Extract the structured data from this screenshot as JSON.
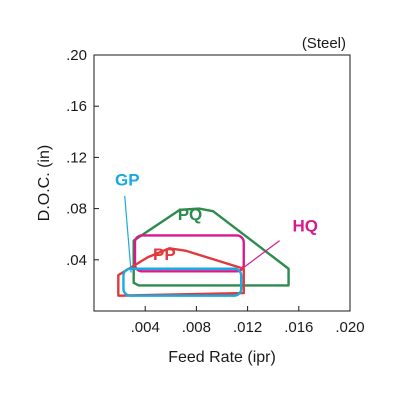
{
  "chart_data": {
    "type": "area",
    "title": "",
    "note": "(Steel)",
    "xlabel": "Feed Rate (ipr)",
    "ylabel": "D.O.C. (in)",
    "xlim": [
      0,
      0.02
    ],
    "ylim": [
      0,
      0.2
    ],
    "x_ticks": [
      0.004,
      0.008,
      0.012,
      0.016,
      0.02
    ],
    "x_tick_labels": [
      ".004",
      ".008",
      ".012",
      ".016",
      ".020"
    ],
    "y_ticks": [
      0.04,
      0.08,
      0.12,
      0.16,
      0.2
    ],
    "y_tick_labels": [
      ".04",
      ".08",
      ".12",
      ".16",
      ".20"
    ],
    "grid": false,
    "series": [
      {
        "name": "PQ",
        "color": "#2e8b4e",
        "shape": "polygon",
        "points": [
          [
            0.0031,
            0.022
          ],
          [
            0.0031,
            0.055
          ],
          [
            0.0067,
            0.079
          ],
          [
            0.0082,
            0.08
          ],
          [
            0.0093,
            0.078
          ],
          [
            0.0152,
            0.033
          ],
          [
            0.0152,
            0.02
          ],
          [
            0.0035,
            0.02
          ]
        ],
        "label_at": [
          0.0075,
          0.071
        ]
      },
      {
        "name": "HQ",
        "color": "#d81b8c",
        "shape": "rect",
        "points": [
          [
            0.0032,
            0.031
          ],
          [
            0.0032,
            0.059
          ],
          [
            0.0117,
            0.059
          ],
          [
            0.0117,
            0.031
          ]
        ],
        "label_at": [
          0.0165,
          0.062
        ],
        "label_leader": [
          [
            0.0145,
            0.055
          ],
          [
            0.0117,
            0.034
          ]
        ]
      },
      {
        "name": "PP",
        "color": "#e03a3a",
        "shape": "polygon",
        "points": [
          [
            0.0019,
            0.012
          ],
          [
            0.0019,
            0.028
          ],
          [
            0.0042,
            0.042
          ],
          [
            0.0059,
            0.049
          ],
          [
            0.0072,
            0.047
          ],
          [
            0.0117,
            0.033
          ],
          [
            0.0117,
            0.014
          ],
          [
            0.0021,
            0.012
          ]
        ],
        "label_at": [
          0.0055,
          0.04
        ]
      },
      {
        "name": "GP",
        "color": "#1aa9e0",
        "shape": "rect",
        "points": [
          [
            0.0023,
            0.012
          ],
          [
            0.0023,
            0.033
          ],
          [
            0.0115,
            0.033
          ],
          [
            0.0115,
            0.012
          ]
        ],
        "label_at": [
          0.0026,
          0.098
        ],
        "label_leader": [
          [
            0.0024,
            0.09
          ],
          [
            0.0029,
            0.03
          ]
        ]
      }
    ]
  }
}
